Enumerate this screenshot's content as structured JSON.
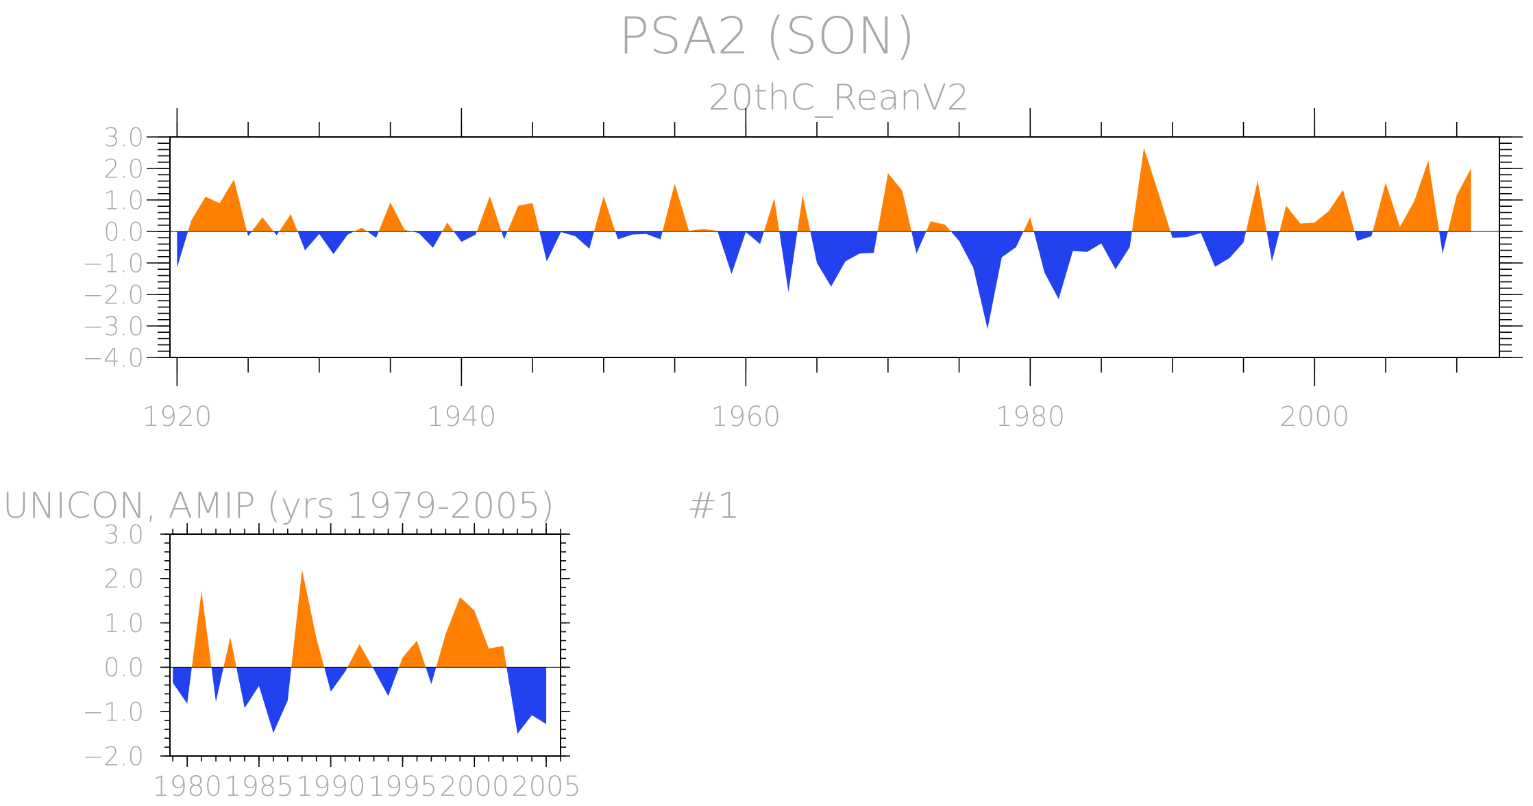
{
  "colors": {
    "positive": "#ff8000",
    "negative": "#2342ef",
    "text": "#a8a8a8",
    "axis": "#000000"
  },
  "title": "PSA2 (SON)",
  "chart_data": [
    {
      "type": "area",
      "subtitle": "20thC_ReanV2",
      "xlim": [
        1919.5,
        2013.0
      ],
      "ylim": [
        -4.0,
        3.0
      ],
      "xticks": [
        1920,
        1940,
        1960,
        1980,
        2000
      ],
      "xtick_labels": [
        "1920",
        "1940",
        "1960",
        "1980",
        "2000"
      ],
      "yticks": [
        3.0,
        2.0,
        1.0,
        0.0,
        -1.0,
        -2.0,
        -3.0,
        -4.0
      ],
      "ytick_labels": [
        "3.0",
        "2.0",
        "1.0",
        "0.0",
        "−1.0",
        "−2.0",
        "−3.0",
        "−4.0"
      ],
      "x": [
        1920,
        1921,
        1922,
        1923,
        1924,
        1925,
        1926,
        1927,
        1928,
        1929,
        1930,
        1931,
        1932,
        1933,
        1934,
        1935,
        1936,
        1937,
        1938,
        1939,
        1940,
        1941,
        1942,
        1943,
        1944,
        1945,
        1946,
        1947,
        1948,
        1949,
        1950,
        1951,
        1952,
        1953,
        1954,
        1955,
        1956,
        1957,
        1958,
        1959,
        1960,
        1961,
        1962,
        1963,
        1964,
        1965,
        1966,
        1967,
        1968,
        1969,
        1970,
        1971,
        1972,
        1973,
        1974,
        1975,
        1976,
        1977,
        1978,
        1979,
        1980,
        1981,
        1982,
        1983,
        1984,
        1985,
        1986,
        1987,
        1988,
        1989,
        1990,
        1991,
        1992,
        1993,
        1994,
        1995,
        1996,
        1997,
        1998,
        1999,
        2000,
        2001,
        2002,
        2003,
        2004,
        2005,
        2006,
        2007,
        2008,
        2009,
        2010,
        2011
      ],
      "values": [
        -1.15,
        0.35,
        1.1,
        0.9,
        1.65,
        -0.15,
        0.45,
        -0.12,
        0.55,
        -0.6,
        -0.08,
        -0.72,
        -0.1,
        0.12,
        -0.2,
        0.92,
        0.05,
        -0.05,
        -0.52,
        0.28,
        -0.33,
        -0.1,
        1.12,
        -0.25,
        0.82,
        0.9,
        -0.95,
        -0.02,
        -0.15,
        -0.55,
        1.12,
        -0.25,
        -0.1,
        -0.08,
        -0.25,
        1.52,
        0.02,
        0.08,
        0.02,
        -1.35,
        -0.02,
        -0.4,
        1.05,
        -1.92,
        1.15,
        -1.0,
        -1.75,
        -0.95,
        -0.7,
        -0.68,
        1.85,
        1.3,
        -0.7,
        0.32,
        0.22,
        -0.3,
        -1.15,
        -3.1,
        -0.82,
        -0.5,
        0.45,
        -1.3,
        -2.15,
        -0.62,
        -0.65,
        -0.38,
        -1.2,
        -0.5,
        2.65,
        1.25,
        -0.2,
        -0.18,
        -0.05,
        -1.12,
        -0.85,
        -0.35,
        1.62,
        -0.95,
        0.82,
        0.25,
        0.28,
        0.65,
        1.32,
        -0.3,
        -0.15,
        1.55,
        0.15,
        0.95,
        2.25,
        -0.7,
        1.15,
        2.0
      ]
    },
    {
      "type": "area",
      "subtitle": "UNICON, AMIP (yrs 1979-2005)",
      "label": "#1",
      "xlim": [
        1978.8,
        2006.0
      ],
      "ylim": [
        -2.0,
        3.0
      ],
      "xticks": [
        1980,
        1985,
        1990,
        1995,
        2000,
        2005
      ],
      "xtick_labels": [
        "1980",
        "1985",
        "1990",
        "1995",
        "2000",
        "2005"
      ],
      "yticks": [
        3.0,
        2.0,
        1.0,
        0.0,
        -1.0,
        -2.0
      ],
      "ytick_labels": [
        "3.0",
        "2.0",
        "1.0",
        "0.0",
        "−1.0",
        "−2.0"
      ],
      "x": [
        1979,
        1980,
        1981,
        1982,
        1983,
        1984,
        1985,
        1986,
        1987,
        1988,
        1989,
        1990,
        1991,
        1992,
        1993,
        1994,
        1995,
        1996,
        1997,
        1998,
        1999,
        2000,
        2001,
        2002,
        2003,
        2004,
        2005
      ],
      "values": [
        -0.35,
        -0.82,
        1.72,
        -0.78,
        0.68,
        -0.92,
        -0.42,
        -1.48,
        -0.75,
        2.2,
        0.65,
        -0.55,
        -0.1,
        0.52,
        -0.05,
        -0.65,
        0.22,
        0.6,
        -0.38,
        0.75,
        1.58,
        1.28,
        0.42,
        0.48,
        -1.5,
        -1.08,
        -1.28
      ]
    }
  ]
}
